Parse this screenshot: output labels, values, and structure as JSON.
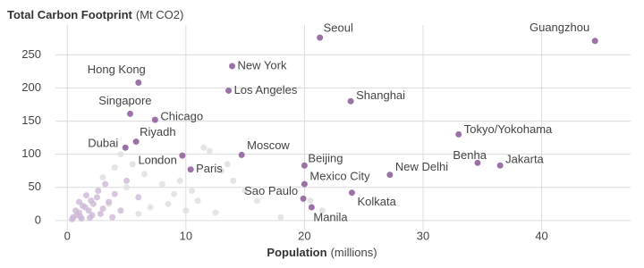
{
  "chart_data": {
    "type": "scatter",
    "title": "Total Carbon Footprint",
    "title_unit": "(Mt CO2)",
    "x_label": "Population",
    "x_label_unit": "(millions)",
    "xlim": [
      -1,
      47.5
    ],
    "ylim": [
      -15,
      295
    ],
    "xticks": [
      0,
      10,
      20,
      30,
      40
    ],
    "yticks": [
      0,
      50,
      100,
      150,
      200,
      250
    ],
    "grid": true,
    "series": [
      {
        "color": "#9a72a8",
        "labels": [
          "Guangzhou",
          "Seoul",
          "New York",
          "Hong Kong",
          "Los Angeles",
          "Shanghai",
          "Singapore",
          "Chicago",
          "Tokyo/Yokohama",
          "Riyadh",
          "Dubai",
          "London",
          "Moscow",
          "Paris",
          "Beijing",
          "Benha",
          "Jakarta",
          "New Delhi",
          "Mexico City",
          "Sao Paulo",
          "Kolkata",
          "Manila"
        ],
        "x": [
          44.5,
          21.3,
          13.9,
          6,
          13.6,
          23.9,
          5.3,
          7.4,
          33,
          5.8,
          4.9,
          9.7,
          14.7,
          10.4,
          20,
          34.6,
          36.5,
          27.2,
          20,
          19.9,
          24,
          20.6
        ],
        "values": [
          271,
          276,
          233,
          208,
          196,
          180,
          161,
          152,
          130,
          119,
          110,
          98,
          99,
          77,
          83,
          87,
          83,
          69,
          55,
          33,
          42,
          20
        ]
      },
      {
        "color": "#cdb8d6",
        "x": [
          0.5,
          0.8,
          1,
          1.2,
          1.5,
          1.8,
          2,
          2.2,
          2.5,
          1,
          1.6,
          2.8,
          3,
          0.7,
          1.3,
          2.1,
          3.5,
          4,
          4.5,
          5,
          3.2,
          6,
          2.6,
          1.9,
          0.4,
          1.1,
          3.8
        ],
        "values": [
          5,
          8,
          12,
          3,
          20,
          15,
          30,
          25,
          35,
          28,
          38,
          10,
          18,
          15,
          22,
          8,
          28,
          40,
          15,
          60,
          55,
          35,
          45,
          4,
          2,
          6,
          5
        ]
      },
      {
        "color": "#dedede",
        "x": [
          3,
          4,
          5,
          6.5,
          7,
          8,
          9,
          10,
          11,
          12,
          12.5,
          11.5,
          13,
          14,
          15,
          7.5,
          8.5,
          6,
          9.5,
          10.5,
          13.5,
          4.5,
          16,
          20.5,
          21.5,
          18,
          5.5,
          3.5
        ],
        "values": [
          65,
          80,
          50,
          70,
          20,
          55,
          40,
          15,
          30,
          105,
          12,
          110,
          75,
          60,
          45,
          90,
          25,
          10,
          60,
          45,
          85,
          100,
          30,
          30,
          15,
          5,
          85,
          25
        ]
      }
    ]
  }
}
